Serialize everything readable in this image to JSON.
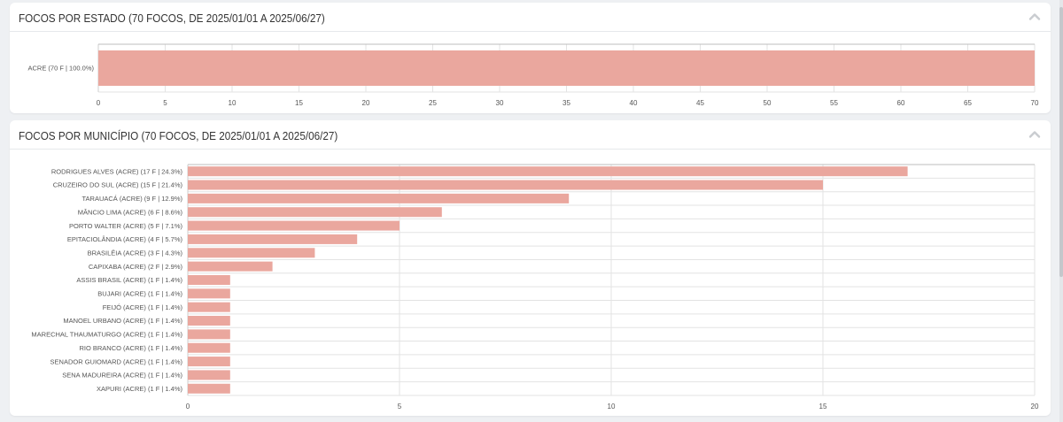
{
  "colors": {
    "bar": "#eaa79e",
    "grid": "#e3e3e3",
    "axis": "#9a9a9a",
    "text": "#555555"
  },
  "panels": {
    "estado": {
      "title": "FOCOS POR ESTADO (70 FOCOS, DE 2025/01/01 A 2025/06/27)",
      "collapse_icon": "chevron-up-icon"
    },
    "municipio": {
      "title": "FOCOS POR MUNICÍPIO (70 FOCOS, DE 2025/01/01 A 2025/06/27)",
      "collapse_icon": "chevron-up-icon"
    }
  },
  "chart_data": [
    {
      "type": "bar",
      "orientation": "horizontal",
      "title": "FOCOS POR ESTADO (70 FOCOS, DE 2025/01/01 A 2025/06/27)",
      "categories": [
        "ACRE (70 F | 100.0%)"
      ],
      "values": [
        70
      ],
      "xlim": [
        0,
        70
      ],
      "xticks": [
        0,
        5,
        10,
        15,
        20,
        25,
        30,
        35,
        40,
        45,
        50,
        55,
        60,
        65,
        70
      ],
      "grid": true
    },
    {
      "type": "bar",
      "orientation": "horizontal",
      "title": "FOCOS POR MUNICÍPIO (70 FOCOS, DE 2025/01/01 A 2025/06/27)",
      "categories": [
        "RODRIGUES ALVES (ACRE) (17 F | 24.3%)",
        "CRUZEIRO DO SUL (ACRE) (15 F | 21.4%)",
        "TARAUACÁ (ACRE) (9 F | 12.9%)",
        "MÂNCIO LIMA (ACRE) (6 F | 8.6%)",
        "PORTO WALTER (ACRE) (5 F | 7.1%)",
        "EPITACIOLÂNDIA (ACRE) (4 F | 5.7%)",
        "BRASILÉIA (ACRE) (3 F | 4.3%)",
        "CAPIXABA (ACRE) (2 F | 2.9%)",
        "ASSIS BRASIL (ACRE) (1 F | 1.4%)",
        "BUJARI (ACRE) (1 F | 1.4%)",
        "FEIJÓ (ACRE) (1 F | 1.4%)",
        "MANOEL URBANO (ACRE) (1 F | 1.4%)",
        "MARECHAL THAUMATURGO (ACRE) (1 F | 1.4%)",
        "RIO BRANCO (ACRE) (1 F | 1.4%)",
        "SENADOR GUIOMARD (ACRE) (1 F | 1.4%)",
        "SENA MADUREIRA (ACRE) (1 F | 1.4%)",
        "XAPURI (ACRE) (1 F | 1.4%)"
      ],
      "values": [
        17,
        15,
        9,
        6,
        5,
        4,
        3,
        2,
        1,
        1,
        1,
        1,
        1,
        1,
        1,
        1,
        1
      ],
      "xlim": [
        0,
        20
      ],
      "xticks": [
        0,
        5,
        10,
        15,
        20
      ],
      "grid": true
    }
  ]
}
